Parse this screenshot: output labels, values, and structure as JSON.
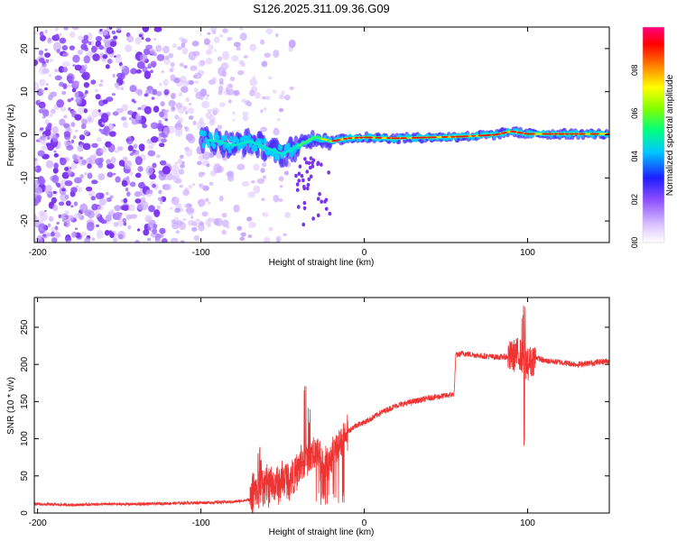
{
  "title": "S126.2025.311.09.36.G09",
  "chart_data": [
    {
      "type": "heatmap",
      "xlabel": "Height of straight line (km)",
      "ylabel": "Frequency (Hz)",
      "xlim": [
        -202,
        150
      ],
      "ylim": [
        -25,
        25
      ],
      "x_ticks": [
        -200,
        -100,
        0,
        100
      ],
      "y_ticks": [
        -20,
        -10,
        0,
        10,
        20
      ],
      "x_tick_labels": [
        "-200",
        "-100",
        "0",
        "100"
      ],
      "y_tick_labels": [
        "-20",
        "-10",
        "0",
        "10",
        "20"
      ],
      "colorbar": {
        "label": "Normalized spectral amplitude",
        "range": [
          0,
          1
        ],
        "ticks": [
          0.0,
          0.2,
          0.4,
          0.6,
          0.8
        ],
        "tick_labels": [
          "0.0",
          "0.2",
          "0.4",
          "0.6",
          "0.8"
        ],
        "colors": [
          "#ffffff",
          "#dcc4ff",
          "#8c4dff",
          "#1e1eff",
          "#00c8ff",
          "#00ff80",
          "#80ff00",
          "#ffff00",
          "#ff8000",
          "#ff0000",
          "#ff0080"
        ]
      },
      "signal_track": [
        {
          "x": -100,
          "y": -1.0
        },
        {
          "x": -90,
          "y": -1.5
        },
        {
          "x": -80,
          "y": -2.5
        },
        {
          "x": -70,
          "y": -1.5
        },
        {
          "x": -60,
          "y": -3.0
        },
        {
          "x": -50,
          "y": -4.5
        },
        {
          "x": -40,
          "y": -2.5
        },
        {
          "x": -30,
          "y": -0.5
        },
        {
          "x": -20,
          "y": -1.5
        },
        {
          "x": -10,
          "y": -0.8
        },
        {
          "x": 0,
          "y": -0.6
        },
        {
          "x": 20,
          "y": -0.8
        },
        {
          "x": 40,
          "y": -0.6
        },
        {
          "x": 60,
          "y": -0.4
        },
        {
          "x": 80,
          "y": 0.0
        },
        {
          "x": 90,
          "y": 0.8
        },
        {
          "x": 100,
          "y": 0.2
        },
        {
          "x": 120,
          "y": 0.2
        },
        {
          "x": 150,
          "y": 0.2
        }
      ],
      "noise_region": [
        -202,
        -40
      ]
    },
    {
      "type": "line",
      "xlabel": "Height of straight line (km)",
      "ylabel": "SNR (10 * v/v)",
      "xlim": [
        -202,
        150
      ],
      "ylim": [
        0,
        290
      ],
      "x_ticks": [
        -200,
        -100,
        0,
        100
      ],
      "y_ticks": [
        0,
        50,
        100,
        150,
        200,
        250
      ],
      "x_tick_labels": [
        "-200",
        "-100",
        "0",
        "100"
      ],
      "y_tick_labels": [
        "0",
        "50",
        "100",
        "150",
        "200",
        "250"
      ],
      "color": "#ee3333",
      "series": [
        {
          "name": "SNR",
          "x": [
            -202,
            -180,
            -160,
            -140,
            -120,
            -100,
            -80,
            -70,
            -62,
            -58,
            -52,
            -48,
            -42,
            -38,
            -32,
            -28,
            -22,
            -18,
            -14,
            -10,
            -5,
            0,
            5,
            10,
            20,
            30,
            40,
            50,
            55,
            56,
            60,
            70,
            80,
            90,
            95,
            98,
            100,
            105,
            110,
            120,
            130,
            140,
            150
          ],
          "y": [
            12,
            11,
            12,
            12,
            13,
            14,
            15,
            18,
            40,
            35,
            40,
            45,
            50,
            70,
            80,
            75,
            65,
            80,
            95,
            110,
            118,
            122,
            128,
            135,
            145,
            150,
            155,
            158,
            160,
            212,
            215,
            212,
            210,
            210,
            215,
            205,
            200,
            210,
            205,
            203,
            200,
            202,
            205
          ]
        }
      ],
      "annotations": [
        {
          "x": -65,
          "y": 95,
          "note": "spike"
        },
        {
          "x": -35,
          "y": 175,
          "note": "spike"
        },
        {
          "x": 97,
          "y": 285,
          "note": "spike"
        },
        {
          "x": 98,
          "y": 85,
          "note": "dip"
        }
      ]
    }
  ]
}
